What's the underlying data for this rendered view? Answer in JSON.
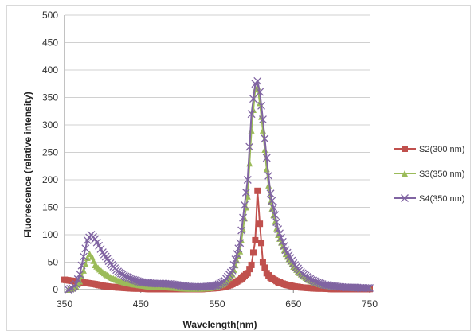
{
  "chart_data": {
    "type": "line",
    "title": "",
    "xlabel": "Wavelength(nm)",
    "ylabel": "Fluorescence (relative intensity)",
    "xlim": [
      350,
      750
    ],
    "ylim": [
      0,
      500
    ],
    "x_ticks": [
      350,
      450,
      550,
      650,
      750
    ],
    "y_ticks": [
      0,
      50,
      100,
      150,
      200,
      250,
      300,
      350,
      400,
      450,
      500
    ],
    "grid": "horizontal",
    "legend_position": "right",
    "series": [
      {
        "name": "S2(300 nm)",
        "color": "#c0504d",
        "marker": "square",
        "points": [
          [
            350,
            18
          ],
          [
            360,
            16
          ],
          [
            370,
            14
          ],
          [
            380,
            12
          ],
          [
            390,
            10
          ],
          [
            400,
            7
          ],
          [
            410,
            5
          ],
          [
            420,
            4
          ],
          [
            430,
            3
          ],
          [
            440,
            2
          ],
          [
            450,
            2
          ],
          [
            460,
            1
          ],
          [
            470,
            1
          ],
          [
            480,
            1
          ],
          [
            490,
            1
          ],
          [
            500,
            1
          ],
          [
            510,
            1
          ],
          [
            520,
            1
          ],
          [
            530,
            1
          ],
          [
            540,
            2
          ],
          [
            550,
            3
          ],
          [
            560,
            5
          ],
          [
            570,
            10
          ],
          [
            580,
            18
          ],
          [
            590,
            30
          ],
          [
            595,
            45
          ],
          [
            600,
            90
          ],
          [
            603,
            180
          ],
          [
            606,
            120
          ],
          [
            610,
            50
          ],
          [
            615,
            30
          ],
          [
            620,
            22
          ],
          [
            630,
            14
          ],
          [
            640,
            9
          ],
          [
            650,
            6
          ],
          [
            660,
            4
          ],
          [
            670,
            3
          ],
          [
            680,
            2
          ],
          [
            690,
            2
          ],
          [
            700,
            1
          ],
          [
            710,
            1
          ],
          [
            720,
            1
          ],
          [
            730,
            1
          ],
          [
            740,
            1
          ],
          [
            750,
            1
          ]
        ]
      },
      {
        "name": "S3(350 nm)",
        "color": "#9bbb59",
        "marker": "triangle",
        "points": [
          [
            355,
            0
          ],
          [
            360,
            2
          ],
          [
            365,
            6
          ],
          [
            370,
            15
          ],
          [
            375,
            35
          ],
          [
            380,
            58
          ],
          [
            383,
            65
          ],
          [
            386,
            60
          ],
          [
            390,
            45
          ],
          [
            400,
            32
          ],
          [
            410,
            23
          ],
          [
            420,
            17
          ],
          [
            430,
            13
          ],
          [
            440,
            10
          ],
          [
            450,
            8
          ],
          [
            460,
            6
          ],
          [
            470,
            5
          ],
          [
            480,
            5
          ],
          [
            490,
            4
          ],
          [
            500,
            3
          ],
          [
            510,
            2
          ],
          [
            520,
            2
          ],
          [
            530,
            2
          ],
          [
            540,
            3
          ],
          [
            550,
            6
          ],
          [
            560,
            12
          ],
          [
            570,
            28
          ],
          [
            580,
            70
          ],
          [
            590,
            170
          ],
          [
            595,
            290
          ],
          [
            600,
            365
          ],
          [
            603,
            370
          ],
          [
            606,
            340
          ],
          [
            610,
            290
          ],
          [
            615,
            220
          ],
          [
            620,
            160
          ],
          [
            630,
            100
          ],
          [
            640,
            65
          ],
          [
            650,
            42
          ],
          [
            660,
            28
          ],
          [
            670,
            18
          ],
          [
            680,
            12
          ],
          [
            690,
            8
          ],
          [
            700,
            6
          ],
          [
            710,
            5
          ],
          [
            720,
            4
          ],
          [
            730,
            3
          ],
          [
            740,
            3
          ],
          [
            750,
            3
          ]
        ]
      },
      {
        "name": "S4(350 nm)",
        "color": "#8064a2",
        "marker": "x",
        "points": [
          [
            355,
            0
          ],
          [
            360,
            3
          ],
          [
            365,
            10
          ],
          [
            370,
            28
          ],
          [
            375,
            60
          ],
          [
            380,
            90
          ],
          [
            385,
            100
          ],
          [
            390,
            92
          ],
          [
            395,
            80
          ],
          [
            400,
            68
          ],
          [
            410,
            48
          ],
          [
            420,
            33
          ],
          [
            430,
            24
          ],
          [
            440,
            18
          ],
          [
            450,
            14
          ],
          [
            460,
            12
          ],
          [
            470,
            11
          ],
          [
            480,
            11
          ],
          [
            490,
            10
          ],
          [
            500,
            8
          ],
          [
            510,
            6
          ],
          [
            520,
            5
          ],
          [
            530,
            5
          ],
          [
            540,
            6
          ],
          [
            550,
            8
          ],
          [
            560,
            16
          ],
          [
            570,
            35
          ],
          [
            580,
            85
          ],
          [
            590,
            200
          ],
          [
            595,
            320
          ],
          [
            600,
            375
          ],
          [
            603,
            380
          ],
          [
            606,
            360
          ],
          [
            610,
            310
          ],
          [
            615,
            240
          ],
          [
            620,
            175
          ],
          [
            630,
            110
          ],
          [
            640,
            72
          ],
          [
            650,
            48
          ],
          [
            660,
            32
          ],
          [
            670,
            21
          ],
          [
            680,
            14
          ],
          [
            690,
            9
          ],
          [
            700,
            7
          ],
          [
            710,
            5
          ],
          [
            720,
            4
          ],
          [
            730,
            4
          ],
          [
            740,
            3
          ],
          [
            750,
            3
          ]
        ]
      }
    ]
  }
}
